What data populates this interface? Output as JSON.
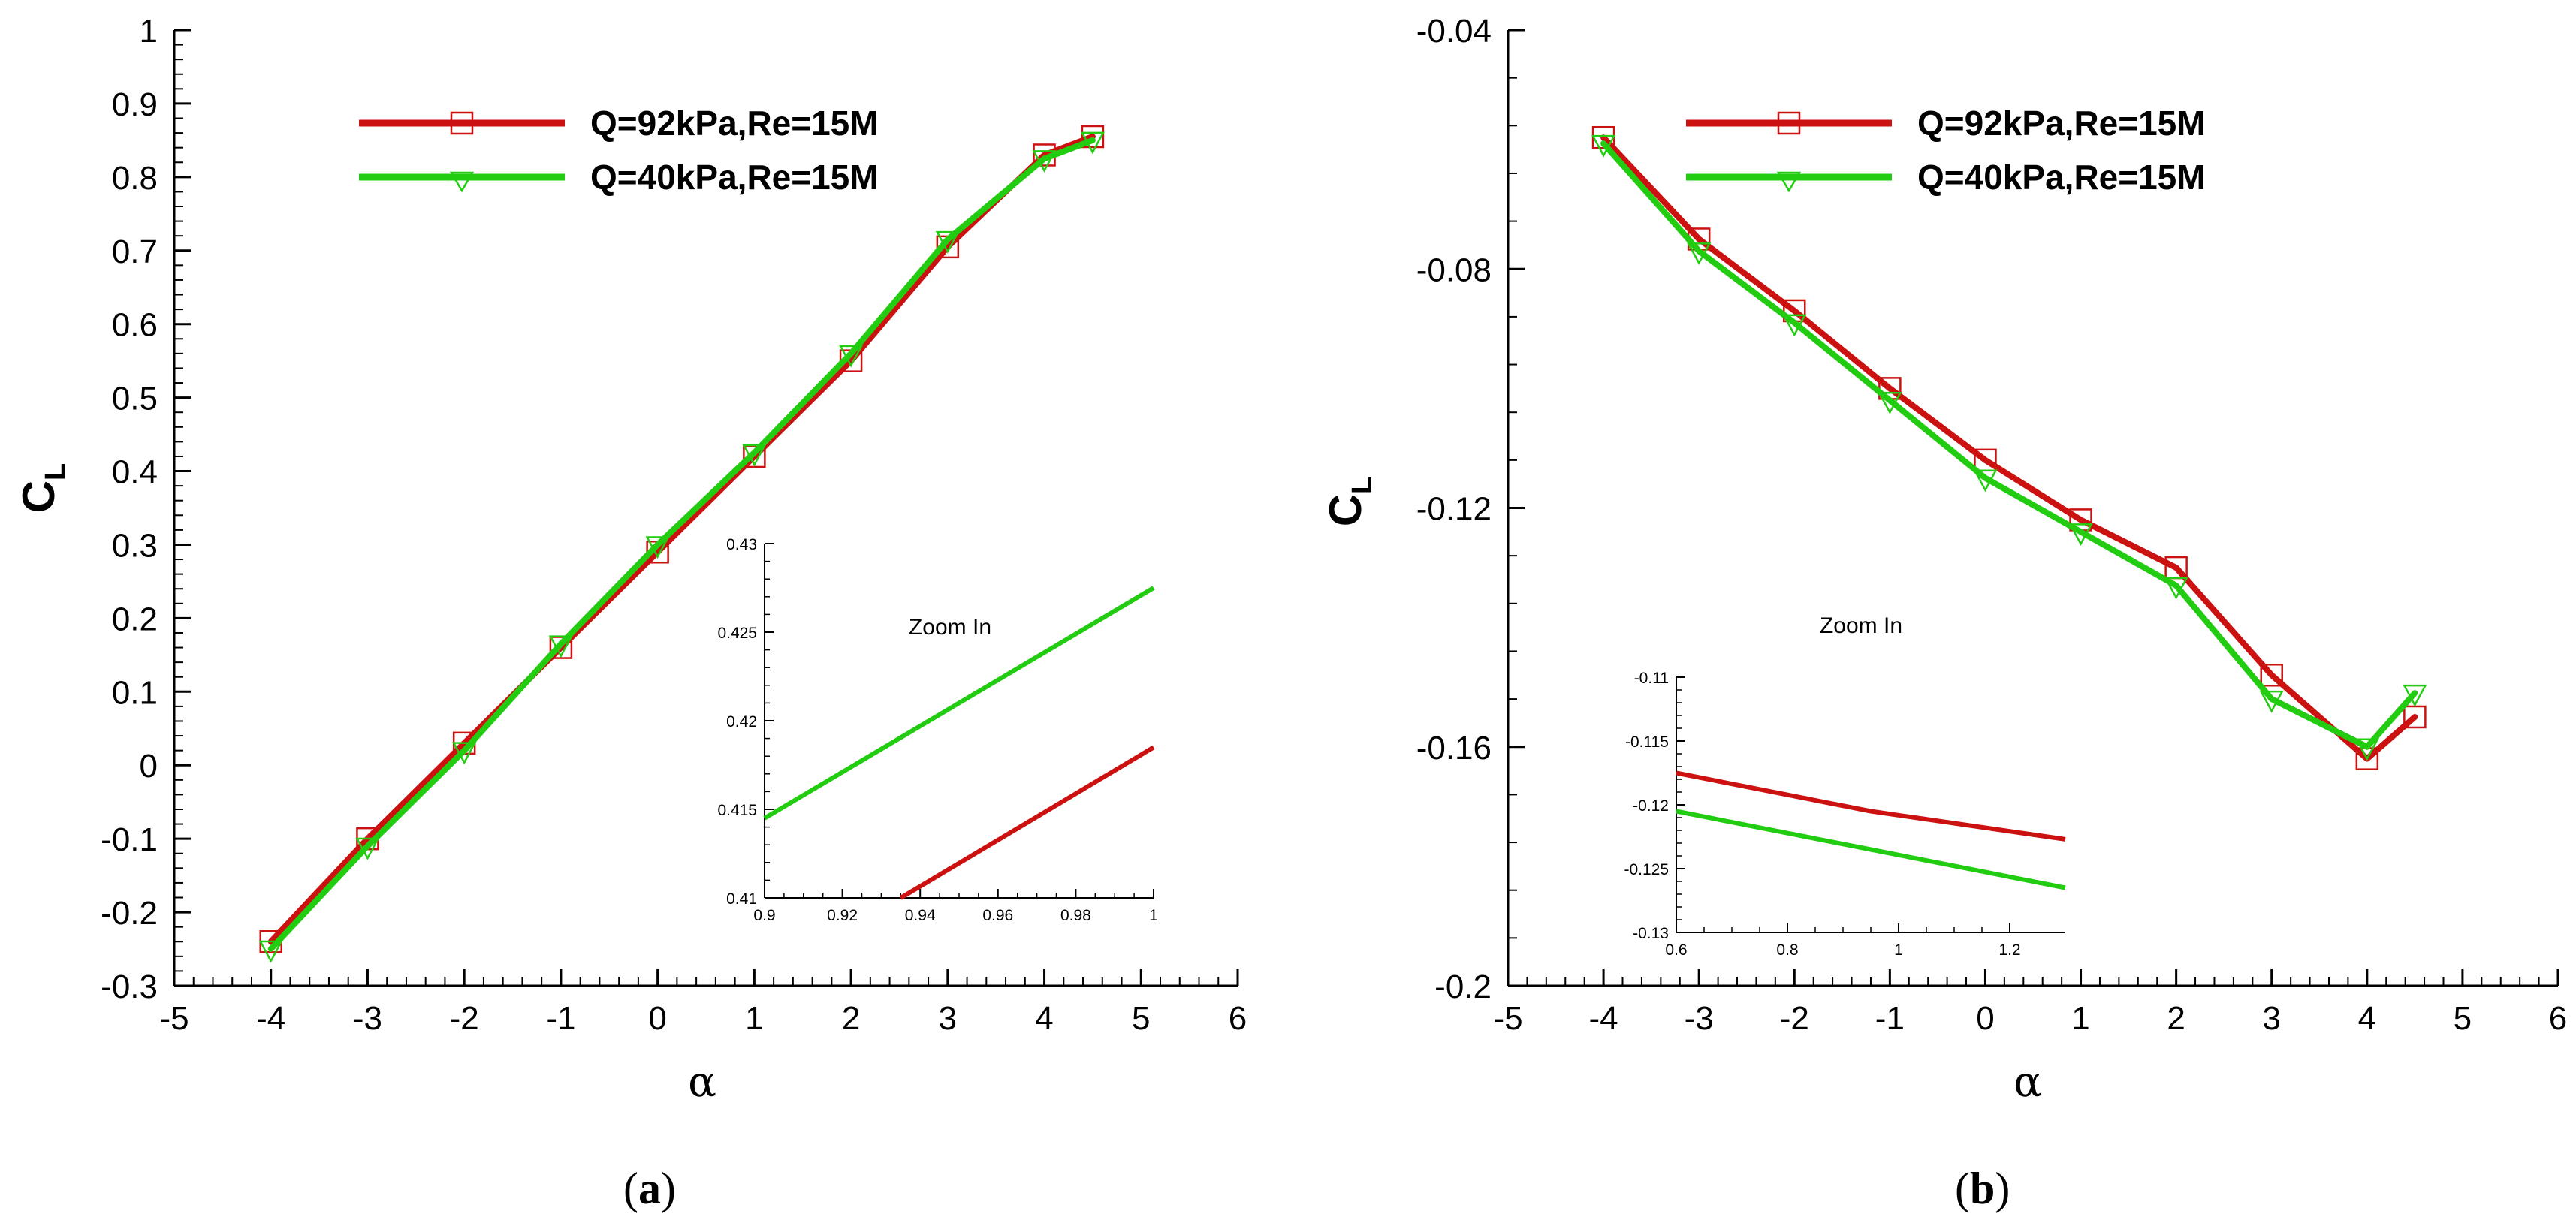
{
  "colors": {
    "series1": "#cc1111",
    "series2": "#22cc11",
    "axis": "#000000"
  },
  "chart_data": [
    {
      "type": "line",
      "panel_label": "a",
      "caption": "(a)",
      "xlabel": "α",
      "ylabel": "C",
      "ylabel_sub": "L",
      "xlim": [
        -5,
        6
      ],
      "ylim": [
        -0.3,
        1
      ],
      "xticks": [
        -5,
        -4,
        -3,
        -2,
        -1,
        0,
        1,
        2,
        3,
        4,
        5,
        6
      ],
      "xtick_labels": [
        "-5",
        "-4",
        "-3",
        "-2",
        "-1",
        "0",
        "1",
        "2",
        "3",
        "4",
        "5",
        "6"
      ],
      "yticks": [
        -0.3,
        -0.2,
        -0.1,
        0,
        0.1,
        0.2,
        0.3,
        0.4,
        0.5,
        0.6,
        0.7,
        0.8,
        0.9,
        1
      ],
      "ytick_labels": [
        "-0.3",
        "-0.2",
        "-0.1",
        "0",
        "0.1",
        "0.2",
        "0.3",
        "0.4",
        "0.5",
        "0.6",
        "0.7",
        "0.8",
        "0.9",
        "1"
      ],
      "legend_position": "top",
      "series": [
        {
          "name": "Q=92kPa,Re=15M",
          "marker": "square",
          "x": [
            -4,
            -3,
            -2,
            -1,
            0,
            1,
            2,
            3,
            4,
            4.5
          ],
          "y": [
            -0.24,
            -0.1,
            0.03,
            0.16,
            0.29,
            0.42,
            0.55,
            0.705,
            0.83,
            0.855
          ]
        },
        {
          "name": "Q=40kPa,Re=15M",
          "marker": "triangle-down",
          "x": [
            -4,
            -3,
            -2,
            -1,
            0,
            1,
            2,
            3,
            4,
            4.5
          ],
          "y": [
            -0.25,
            -0.11,
            0.02,
            0.165,
            0.3,
            0.425,
            0.56,
            0.715,
            0.825,
            0.85
          ]
        }
      ],
      "inset": {
        "title": "Zoom In",
        "xlim": [
          0.9,
          1
        ],
        "ylim": [
          0.41,
          0.43
        ],
        "xticks": [
          0.9,
          0.92,
          0.94,
          0.96,
          0.98,
          1
        ],
        "xtick_labels": [
          "0.9",
          "0.92",
          "0.94",
          "0.96",
          "0.98",
          "1"
        ],
        "yticks": [
          0.41,
          0.415,
          0.42,
          0.425,
          0.43
        ],
        "ytick_labels": [
          "0.41",
          "0.415",
          "0.42",
          "0.425",
          "0.43"
        ],
        "series": [
          {
            "name": "Q=92kPa,Re=15M",
            "x": [
              0.935,
              1
            ],
            "y": [
              0.41,
              0.4185
            ]
          },
          {
            "name": "Q=40kPa,Re=15M",
            "x": [
              0.9,
              1
            ],
            "y": [
              0.4145,
              0.4275
            ]
          }
        ]
      }
    },
    {
      "type": "line",
      "panel_label": "b",
      "caption": "(b)",
      "xlabel": "α",
      "ylabel": "C",
      "ylabel_sub": "L",
      "xlim": [
        -5,
        6
      ],
      "ylim": [
        -0.2,
        -0.04
      ],
      "xticks": [
        -5,
        -4,
        -3,
        -2,
        -1,
        0,
        1,
        2,
        3,
        4,
        5,
        6
      ],
      "xtick_labels": [
        "-5",
        "-4",
        "-3",
        "-2",
        "-1",
        "0",
        "1",
        "2",
        "3",
        "4",
        "5",
        "6"
      ],
      "yticks": [
        -0.2,
        -0.16,
        -0.12,
        -0.08,
        -0.04
      ],
      "ytick_labels": [
        "-0.2",
        "-0.16",
        "-0.12",
        "-0.08",
        "-0.04"
      ],
      "legend_position": "top",
      "series": [
        {
          "name": "Q=92kPa,Re=15M",
          "marker": "square",
          "x": [
            -4,
            -3,
            -2,
            -1,
            0,
            1,
            2,
            3,
            4,
            4.5
          ],
          "y": [
            -0.058,
            -0.075,
            -0.087,
            -0.1,
            -0.112,
            -0.122,
            -0.13,
            -0.148,
            -0.162,
            -0.155
          ]
        },
        {
          "name": "Q=40kPa,Re=15M",
          "marker": "triangle-down",
          "x": [
            -4,
            -3,
            -2,
            -1,
            0,
            1,
            2,
            3,
            4,
            4.5
          ],
          "y": [
            -0.059,
            -0.077,
            -0.089,
            -0.102,
            -0.115,
            -0.124,
            -0.133,
            -0.152,
            -0.16,
            -0.151
          ]
        }
      ],
      "inset": {
        "title": "Zoom In",
        "xlim": [
          0.6,
          1.3
        ],
        "ylim": [
          -0.13,
          -0.11
        ],
        "xticks": [
          0.6,
          0.8,
          1,
          1.2
        ],
        "xtick_labels": [
          "0.6",
          "0.8",
          "1",
          "1.2"
        ],
        "yticks": [
          -0.13,
          -0.125,
          -0.12,
          -0.115,
          -0.11
        ],
        "ytick_labels": [
          "-0.13",
          "-0.125",
          "-0.12",
          "-0.115",
          "-0.11"
        ],
        "series": [
          {
            "name": "Q=92kPa,Re=15M",
            "x": [
              0.6,
              0.95,
              1.3
            ],
            "y": [
              -0.1175,
              -0.1205,
              -0.1227
            ]
          },
          {
            "name": "Q=40kPa,Re=15M",
            "x": [
              0.6,
              0.95,
              1.3
            ],
            "y": [
              -0.1205,
              -0.1235,
              -0.1265
            ]
          }
        ]
      }
    }
  ]
}
